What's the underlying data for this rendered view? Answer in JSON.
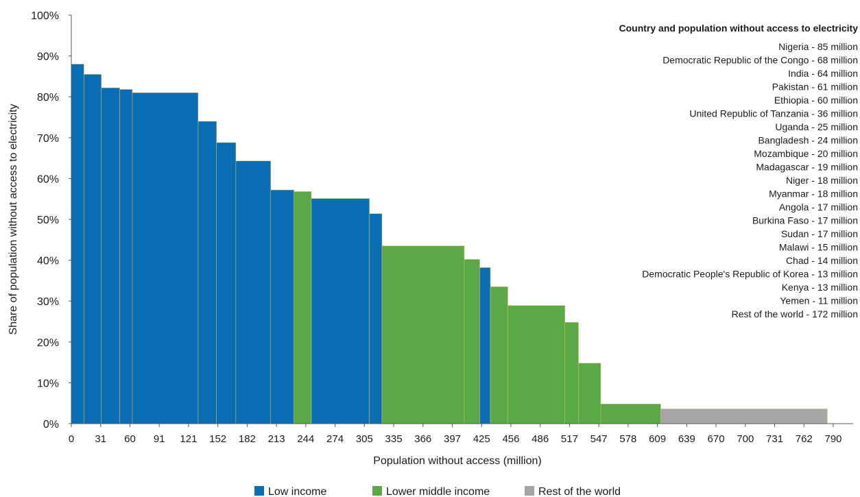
{
  "chart_data": {
    "type": "bar",
    "subtype": "variable-width bar",
    "xlabel": "Population without access (million)",
    "ylabel": "Share of population without access to electricity",
    "xlim": [
      0,
      800
    ],
    "ylim": [
      0,
      100
    ],
    "y_ticks": [
      "0%",
      "10%",
      "20%",
      "30%",
      "40%",
      "50%",
      "60%",
      "70%",
      "80%",
      "90%",
      "100%"
    ],
    "x_ticks": [
      "0",
      "31",
      "60",
      "91",
      "121",
      "152",
      "182",
      "213",
      "244",
      "274",
      "305",
      "335",
      "366",
      "397",
      "425",
      "456",
      "486",
      "517",
      "547",
      "578",
      "609",
      "639",
      "670",
      "700",
      "731",
      "762",
      "790"
    ],
    "grid": false,
    "legend_title": "Country and population without access to electricity",
    "legend_position": "top-right",
    "legend_entries": [
      "Nigeria - 85 million",
      "Democratic Republic of the Congo - 68 million",
      "India - 64 million",
      "Pakistan - 61 million",
      "Ethiopia - 60 million",
      "United Republic of Tanzania - 36 million",
      "Uganda - 25 million",
      "Bangladesh - 24 million",
      "Mozambique - 20 million",
      "Madagascar - 19 million",
      "Niger - 18 million",
      "Myanmar - 18 million",
      "Angola - 17 million",
      "Burkina Faso - 17 million",
      "Sudan - 17 million",
      "Malawi - 15 million",
      "Chad - 14 million",
      "Democratic People's Republic of Korea - 13 million",
      "Kenya - 13 million",
      "Yemen - 11 million",
      "Rest of the world - 172 million"
    ],
    "groups": [
      {
        "key": "low",
        "name": "Low income",
        "color": "#0a6eb4"
      },
      {
        "key": "lower_middle",
        "name": "Lower middle income",
        "color": "#5ba946"
      },
      {
        "key": "rest",
        "name": "Rest of the world",
        "color": "#a6a6a6"
      }
    ],
    "bars": [
      {
        "x_start": 0,
        "x_end": 13,
        "value": 88,
        "group": "low"
      },
      {
        "x_start": 13,
        "x_end": 31,
        "value": 85.5,
        "group": "low"
      },
      {
        "x_start": 31,
        "x_end": 50,
        "value": 82.2,
        "group": "low"
      },
      {
        "x_start": 50,
        "x_end": 63,
        "value": 81.8,
        "group": "low"
      },
      {
        "x_start": 63,
        "x_end": 131,
        "value": 81,
        "group": "low"
      },
      {
        "x_start": 131,
        "x_end": 150,
        "value": 74,
        "group": "low"
      },
      {
        "x_start": 150,
        "x_end": 170,
        "value": 68.8,
        "group": "low"
      },
      {
        "x_start": 170,
        "x_end": 206,
        "value": 64.3,
        "group": "low"
      },
      {
        "x_start": 206,
        "x_end": 230,
        "value": 57.2,
        "group": "low"
      },
      {
        "x_start": 230,
        "x_end": 248,
        "value": 56.8,
        "group": "lower_middle"
      },
      {
        "x_start": 248,
        "x_end": 308,
        "value": 55.1,
        "group": "low"
      },
      {
        "x_start": 308,
        "x_end": 321,
        "value": 51.4,
        "group": "low"
      },
      {
        "x_start": 321,
        "x_end": 406,
        "value": 43.5,
        "group": "lower_middle"
      },
      {
        "x_start": 406,
        "x_end": 422,
        "value": 40.2,
        "group": "lower_middle"
      },
      {
        "x_start": 422,
        "x_end": 433,
        "value": 38.2,
        "group": "low"
      },
      {
        "x_start": 433,
        "x_end": 451,
        "value": 33.5,
        "group": "lower_middle"
      },
      {
        "x_start": 451,
        "x_end": 510,
        "value": 28.9,
        "group": "lower_middle"
      },
      {
        "x_start": 510,
        "x_end": 524,
        "value": 24.8,
        "group": "lower_middle"
      },
      {
        "x_start": 524,
        "x_end": 547,
        "value": 14.8,
        "group": "lower_middle"
      },
      {
        "x_start": 547,
        "x_end": 609,
        "value": 4.8,
        "group": "lower_middle"
      },
      {
        "x_start": 609,
        "x_end": 781,
        "value": 3.6,
        "group": "rest"
      }
    ]
  }
}
